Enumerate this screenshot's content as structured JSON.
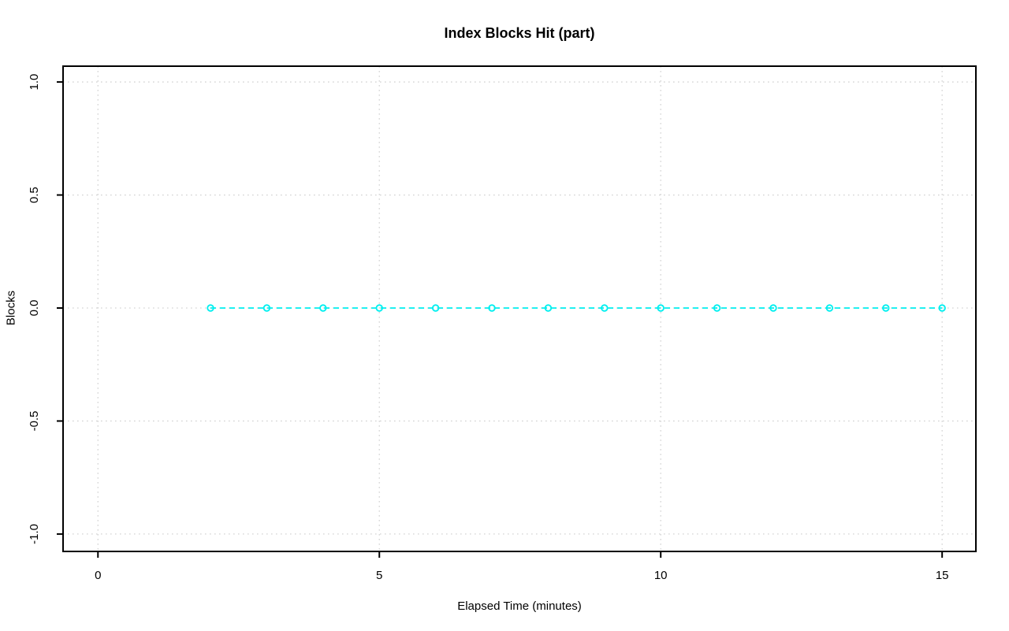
{
  "chart_data": {
    "type": "line",
    "title": "Index Blocks Hit (part)",
    "xlabel": "Elapsed Time (minutes)",
    "ylabel": "Blocks",
    "x": [
      2,
      3,
      4,
      5,
      6,
      7,
      8,
      9,
      10,
      11,
      12,
      13,
      14,
      15
    ],
    "y": [
      0,
      0,
      0,
      0,
      0,
      0,
      0,
      0,
      0,
      0,
      0,
      0,
      0,
      0
    ],
    "series_name": "Index Blocks Hit",
    "xticks": [
      0,
      5,
      10,
      15
    ],
    "xtick_labels": [
      "0",
      "5",
      "10",
      "15"
    ],
    "yticks": [
      -1.0,
      -0.5,
      0.0,
      0.5,
      1.0
    ],
    "ytick_labels": [
      "-1.0",
      "-0.5",
      "0.0",
      "0.5",
      "1.0"
    ],
    "xlim": [
      -0.62,
      15.6
    ],
    "ylim": [
      -1.077,
      1.07
    ],
    "grid": true,
    "grid_style": "dotted",
    "line_style": "dashed",
    "marker": "open-circle",
    "legend_position": "none",
    "colors": {
      "series": "#00efef",
      "grid": "#d3d3d3",
      "axis": "#000000",
      "background": "#ffffff"
    }
  }
}
